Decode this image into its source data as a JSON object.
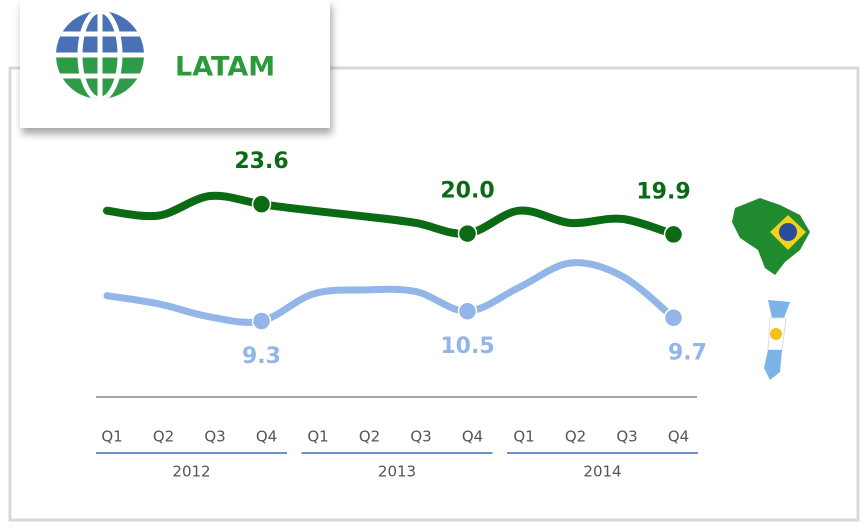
{
  "chart_data": {
    "type": "line",
    "title": "LATAM",
    "categories": [
      "Q1",
      "Q2",
      "Q3",
      "Q4",
      "Q1",
      "Q2",
      "Q3",
      "Q4",
      "Q1",
      "Q2",
      "Q3",
      "Q4"
    ],
    "year_groups": [
      "2012",
      "2013",
      "2014"
    ],
    "series": [
      {
        "color": "#0b6a14",
        "values": [
          22.8,
          22.2,
          24.6,
          23.6,
          22.8,
          22.1,
          21.3,
          20.0,
          22.8,
          21.3,
          21.8,
          19.9
        ],
        "value_labels": [
          null,
          null,
          null,
          "23.6",
          null,
          null,
          null,
          "20.0",
          null,
          null,
          null,
          "19.9"
        ]
      },
      {
        "color": "#92b6e8",
        "values": [
          12.4,
          11.4,
          9.8,
          9.3,
          12.6,
          13.1,
          12.9,
          10.5,
          13.4,
          16.4,
          14.8,
          9.7
        ],
        "value_labels": [
          null,
          null,
          null,
          "9.3",
          null,
          null,
          null,
          "10.5",
          null,
          null,
          null,
          "9.7"
        ]
      }
    ]
  }
}
